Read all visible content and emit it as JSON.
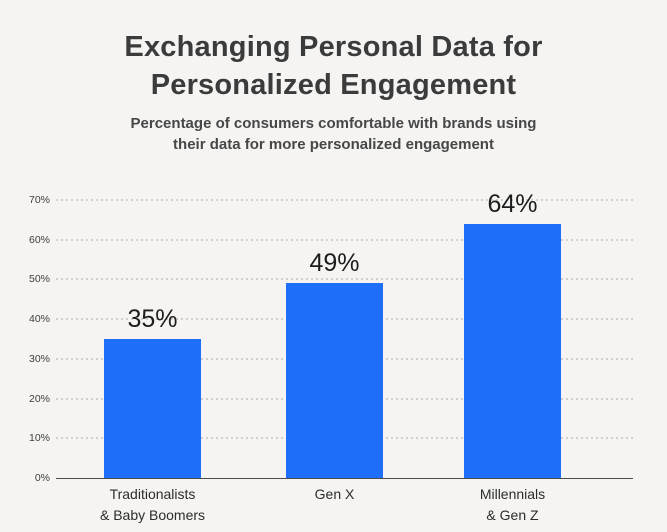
{
  "header": {
    "title_lines": [
      "Exchanging Personal Data for",
      "Personalized Engagement"
    ],
    "subtitle_lines": [
      "Percentage of consumers comfortable with brands using",
      "their data for more personalized engagement"
    ]
  },
  "chart_data": {
    "type": "bar",
    "title": "Exchanging Personal Data for Personalized Engagement",
    "subtitle": "Percentage of consumers comfortable with brands using their data for more personalized engagement",
    "categories": [
      "Traditionalists & Baby Boomers",
      "Gen X",
      "Millennials & Gen Z"
    ],
    "category_label_lines": [
      [
        "Traditionalists",
        "& Baby Boomers"
      ],
      [
        "Gen X"
      ],
      [
        "Millennials",
        "& Gen Z"
      ]
    ],
    "values": [
      35,
      49,
      64
    ],
    "value_labels": [
      "35%",
      "49%",
      "64%"
    ],
    "xlabel": "",
    "ylabel": "",
    "ylim": [
      0,
      70
    ],
    "ytick_step": 10,
    "ytick_labels": [
      "0%",
      "10%",
      "20%",
      "30%",
      "40%",
      "50%",
      "60%",
      "70%"
    ],
    "grid": "horizontal-dotted",
    "legend": "none",
    "bar_color": "#1e6ef8"
  },
  "colors": {
    "background": "#f5f4f2",
    "title_text": "#3b3b3b",
    "subtitle_text": "#474747",
    "axis_text": "#3d3d3d",
    "value_label_text": "#1d1d1d",
    "category_label_text": "#2c2c2c",
    "gridline": "#d2cfcb",
    "axis_line": "#4d4d4d",
    "bar": "#1e6ef8"
  }
}
